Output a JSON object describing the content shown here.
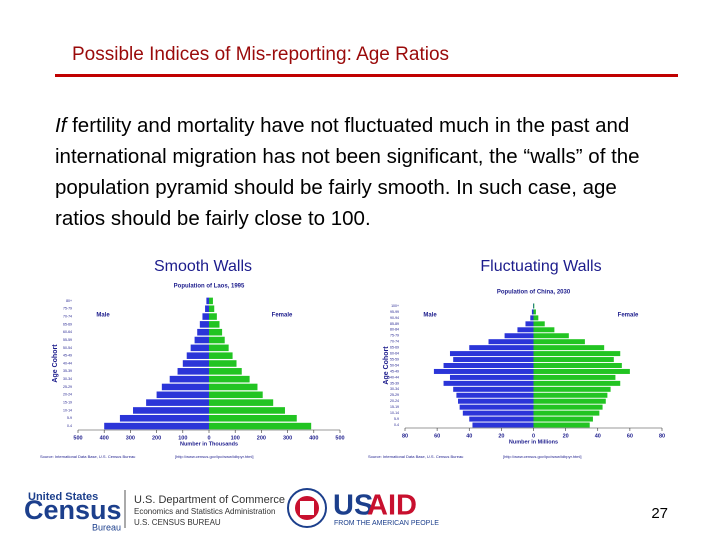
{
  "title": "Possible Indices of Mis-reporting: Age Ratios",
  "body": {
    "lead": "If",
    "text": " fertility and mortality have not fluctuated much in the past and international migration has not been significant, the “walls” of the population pyramid should be fairly smooth.  In such case, age ratios should be fairly close to 100."
  },
  "chart_data": [
    {
      "type": "pyramid",
      "subtitle": "Smooth Walls",
      "title": "Population of Laos, 1995",
      "xlabel": "Number in Thousands",
      "ylabel": "Age Cohort",
      "categories": [
        "0-4",
        "5-9",
        "10-14",
        "15-19",
        "20-24",
        "25-29",
        "30-34",
        "35-39",
        "40-44",
        "45-49",
        "50-54",
        "55-59",
        "60-64",
        "65-69",
        "70-74",
        "75-79",
        "80+"
      ],
      "series": [
        {
          "name": "Male",
          "color": "#2b35d8",
          "values": [
            400,
            340,
            290,
            240,
            200,
            180,
            150,
            120,
            100,
            85,
            70,
            55,
            45,
            35,
            25,
            15,
            10
          ]
        },
        {
          "name": "Female",
          "color": "#22c422",
          "values": [
            390,
            335,
            290,
            245,
            205,
            185,
            155,
            125,
            105,
            90,
            75,
            60,
            50,
            40,
            30,
            20,
            15
          ]
        }
      ],
      "xlim": [
        -500,
        500
      ],
      "xticks": [
        {
          "value": -500,
          "label": "500"
        },
        {
          "value": -400,
          "label": "400"
        },
        {
          "value": -300,
          "label": "300"
        },
        {
          "value": -200,
          "label": "200"
        },
        {
          "value": -100,
          "label": "100"
        },
        0,
        100,
        200,
        300,
        400,
        500
      ],
      "source": "Source: International Data Base, U.S. Census Bureau",
      "url": "[http://www.census.gov/ipc/www/idbpyr.html]"
    },
    {
      "type": "pyramid",
      "subtitle": "Fluctuating Walls",
      "title": "Population of China, 2030",
      "xlabel": "Number in Millions",
      "ylabel": "Age Cohort",
      "categories": [
        "0-4",
        "5-9",
        "10-14",
        "15-19",
        "20-24",
        "25-29",
        "30-34",
        "35-39",
        "40-44",
        "45-49",
        "50-54",
        "55-59",
        "60-64",
        "65-69",
        "70-74",
        "75-79",
        "80-84",
        "85-89",
        "90-94",
        "95-99",
        "100+"
      ],
      "series": [
        {
          "name": "Male",
          "color": "#2b35d8",
          "values": [
            38,
            40,
            44,
            46,
            47,
            48,
            50,
            56,
            52,
            62,
            56,
            50,
            52,
            40,
            28,
            18,
            10,
            5,
            2,
            1,
            0.3
          ]
        },
        {
          "name": "Female",
          "color": "#22c422",
          "values": [
            35,
            37,
            41,
            43,
            45,
            46,
            48,
            54,
            51,
            60,
            55,
            50,
            54,
            44,
            32,
            22,
            13,
            7,
            3,
            1.5,
            0.5
          ]
        }
      ],
      "xlim": [
        -80,
        80
      ],
      "xticks": [
        {
          "value": -80,
          "label": "80"
        },
        {
          "value": -60,
          "label": "60"
        },
        {
          "value": -40,
          "label": "40"
        },
        {
          "value": -20,
          "label": "20"
        },
        0,
        20,
        40,
        60,
        80
      ],
      "source": "Source: International Data Base, U.S. Census Bureau",
      "url": "[http://www.census.gov/ipc/www/idbpyr.html]"
    }
  ],
  "footer": {
    "census_top": "United States",
    "census_main": "Census",
    "census_bottom": "Bureau",
    "doc_line1": "U.S. Department of Commerce",
    "doc_line2": "Economics and Statistics Administration",
    "doc_line3": "U.S. CENSUS BUREAU",
    "usaid_us": "US",
    "usaid_aid": "AID",
    "usaid_tag": "FROM THE AMERICAN PEOPLE",
    "page": "27"
  }
}
